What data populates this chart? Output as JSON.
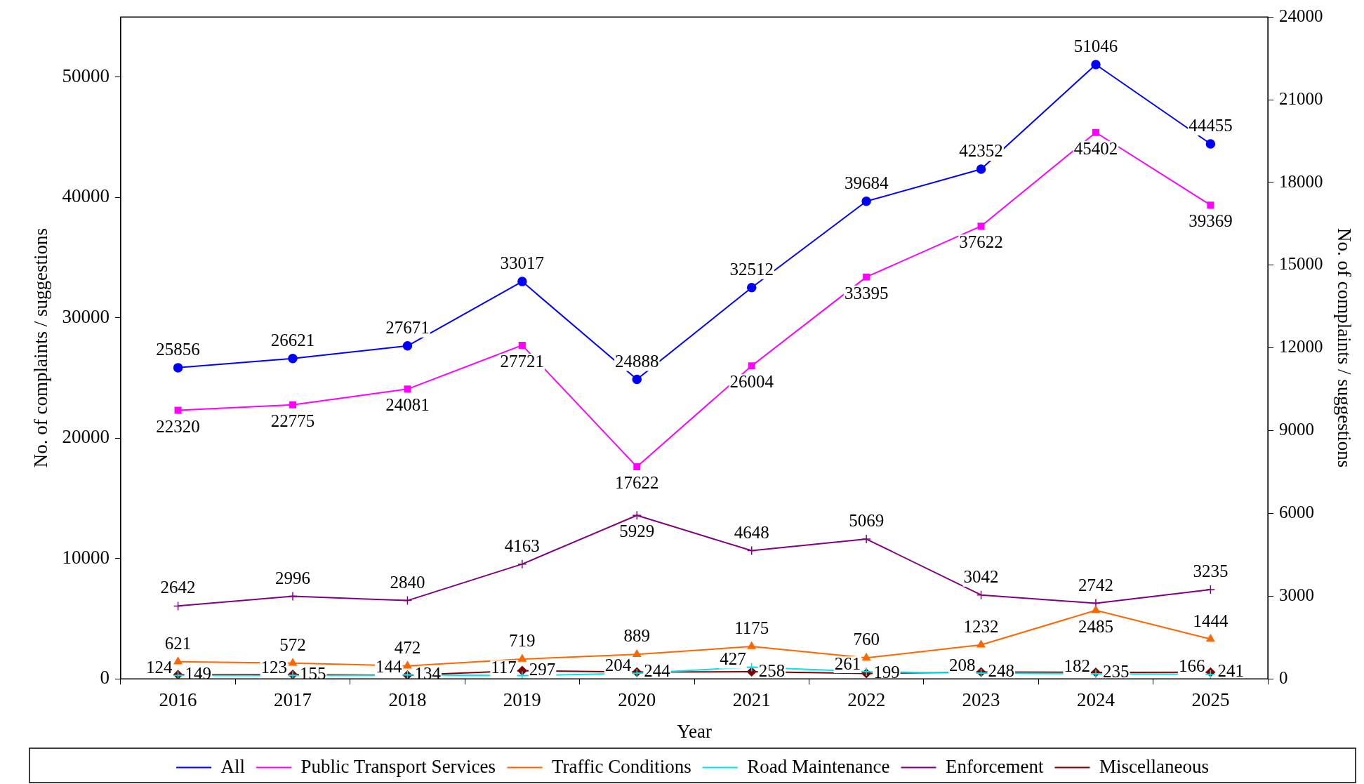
{
  "chart_data": {
    "type": "line",
    "xlabel": "Year",
    "ylabel": "No. of complaints / suggestions",
    "y2label": "No. of complaints / suggestions",
    "categories": [
      "2016",
      "2017",
      "2018",
      "2019",
      "2020",
      "2021",
      "2022",
      "2023",
      "2024",
      "2025"
    ],
    "series": [
      {
        "name": "All",
        "color": "#0000ff",
        "marker": "circle",
        "values": [
          25856,
          26621,
          27671,
          33017,
          24888,
          32512,
          39684,
          42352,
          51046,
          44455
        ]
      },
      {
        "name": "Public Transport Services",
        "color": "#ff00ff",
        "marker": "square",
        "values": [
          22320,
          22775,
          24081,
          27721,
          17622,
          26004,
          33395,
          37622,
          45402,
          39369
        ]
      },
      {
        "name": "Traffic Conditions",
        "color": "#ff6600",
        "marker": "triangle",
        "axis": "y2",
        "values": [
          621,
          572,
          472,
          719,
          889,
          1175,
          760,
          1232,
          2485,
          1444
        ]
      },
      {
        "name": "Road Maintenance",
        "color": "#00e5ee",
        "marker": "cross",
        "axis": "y2",
        "values": [
          124,
          123,
          144,
          117,
          204,
          427,
          261,
          208,
          182,
          166
        ]
      },
      {
        "name": "Enforcement",
        "color": "#800080",
        "marker": "cross",
        "axis": "y2",
        "values": [
          2642,
          2996,
          2840,
          4163,
          5929,
          4648,
          5069,
          3042,
          2742,
          3235
        ]
      },
      {
        "name": "Miscellaneous",
        "color": "#800000",
        "marker": "diamond",
        "axis": "y2",
        "values": [
          149,
          155,
          134,
          297,
          244,
          258,
          199,
          248,
          235,
          241
        ]
      }
    ],
    "ylim": [
      0,
      55000
    ],
    "yticks": [
      0,
      10000,
      20000,
      30000,
      40000,
      50000
    ],
    "y2lim": [
      0,
      24000
    ],
    "y2ticks": [
      0,
      3000,
      6000,
      9000,
      12000,
      15000,
      18000,
      21000,
      24000
    ],
    "grid": false,
    "legend": "bottom",
    "data_labels": true,
    "line_style": "solid"
  }
}
